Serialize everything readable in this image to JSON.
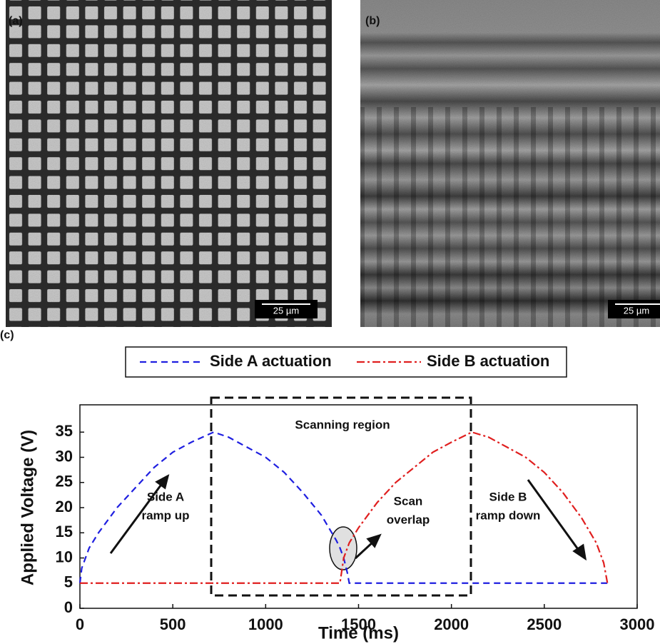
{
  "panels": {
    "a": {
      "label": "(a)",
      "scale_bar": "25 µm"
    },
    "b": {
      "label": "(b)",
      "scale_bar": "25 µm"
    },
    "c": {
      "label": "(c)"
    }
  },
  "chart_data": {
    "type": "line",
    "x_label": "Time (ms)",
    "y_label": "Applied Voltage (V)",
    "legend": "top",
    "x": [
      0,
      10,
      50,
      100,
      200,
      300,
      400,
      500,
      600,
      720,
      800,
      900,
      1000,
      1100,
      1200,
      1300,
      1380,
      1400,
      1420,
      1440,
      1450,
      1500,
      1600,
      1700,
      1800,
      1900,
      2000,
      2110,
      2200,
      2300,
      2400,
      2500,
      2600,
      2700,
      2780,
      2820,
      2840
    ],
    "series": [
      {
        "name": "Side A actuation",
        "color": "#1f1fe0",
        "style": "dashed",
        "values": [
          5,
          8,
          12,
          15,
          20,
          24,
          28,
          31,
          33,
          35,
          34,
          32,
          30,
          27,
          23,
          18.5,
          13.5,
          12,
          10,
          7,
          5,
          5,
          5,
          5,
          5,
          5,
          5,
          5,
          5,
          5,
          5,
          5,
          5,
          5,
          5,
          5,
          5
        ]
      },
      {
        "name": "Side B actuation",
        "color": "#e01f1f",
        "style": "dash-dot",
        "values": [
          5,
          5,
          5,
          5,
          5,
          5,
          5,
          5,
          5,
          5,
          5,
          5,
          5,
          5,
          5,
          5,
          5,
          5,
          10,
          12,
          13,
          16,
          21,
          25,
          28,
          31,
          33,
          35,
          34,
          32,
          30,
          27,
          23,
          18,
          13,
          9,
          5
        ]
      }
    ],
    "xlim": [
      0,
      3000
    ],
    "ylim": [
      0,
      40
    ],
    "xticks": [
      0,
      500,
      1000,
      1500,
      2000,
      2500,
      3000
    ],
    "yticks": [
      0,
      5,
      10,
      15,
      20,
      25,
      30,
      35
    ],
    "annotations": [
      {
        "text": [
          "Scanning region"
        ]
      },
      {
        "text": [
          "Side A",
          "ramp up"
        ]
      },
      {
        "text": [
          "Scan",
          "overlap"
        ]
      },
      {
        "text": [
          "Side B",
          "ramp down"
        ]
      }
    ]
  }
}
